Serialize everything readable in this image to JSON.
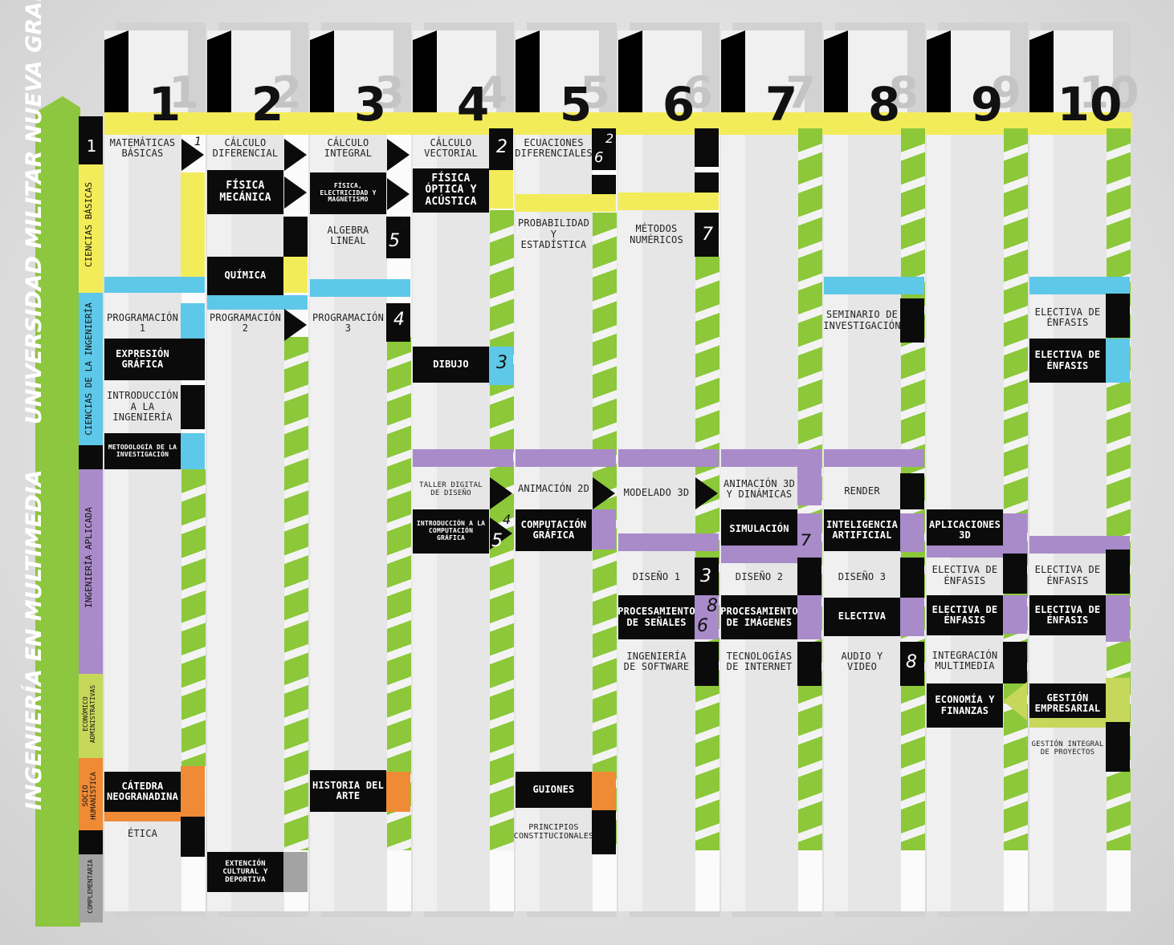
{
  "title_main": "INGENIERÍA EN MULTIMEDIA",
  "title_university": "UNIVERSIDAD MILITAR NUEVA GRANADA",
  "legend_number": "1",
  "categories": [
    {
      "label": "CIENCIAS BÁSICAS",
      "color": "#f3ec5a"
    },
    {
      "label": "CIENCIAS DE LA INGENIERÍA",
      "color": "#5ec8e8"
    },
    {
      "label": "INGENIERÍA APLICADA",
      "color": "#a98bc9"
    },
    {
      "label": "ECONÓMICO ADMINISTRATIVAS",
      "color": "#c6d85a"
    },
    {
      "label": "SOCIO HUMANÍSTICA",
      "color": "#ef8a35"
    },
    {
      "label": "COMPLEMENTARIA",
      "color": "#a3a3a3"
    }
  ],
  "colors": {
    "accent_green": "#8dc63f",
    "dark": "#0b0b0b",
    "yellow": "#f3ec5a",
    "blue": "#5ec8e8",
    "purple": "#a98bc9",
    "orange": "#ef8a35",
    "olive": "#c6d85a"
  },
  "semesters": [
    "1",
    "2",
    "3",
    "4",
    "5",
    "6",
    "7",
    "8",
    "9",
    "10"
  ],
  "courses": {
    "s1": {
      "matematicas_basicas": "MATEMÁTICAS BÁSICAS",
      "programacion_1": "PROGRAMACIÓN 1",
      "expresion_grafica": "EXPRESIÓN GRÁFICA",
      "introduccion_ingenieria": "INTRODUCCIÓN A LA INGENIERÍA",
      "metodologia": "METODOLOGÍA DE LA INVESTIGACIÓN",
      "catedra": "CÁTEDRA NEOGRANADINA",
      "etica": "ÉTICA"
    },
    "s2": {
      "calculo_diferencial": "CÁLCULO DIFERENCIAL",
      "fisica_mecanica": "FÍSICA MECÁNICA",
      "quimica": "QUÍMICA",
      "programacion_2": "PROGRAMACIÓN 2",
      "extencion": "EXTENCIÓN CULTURAL Y DEPORTIVA"
    },
    "s3": {
      "calculo_integral": "CÁLCULO INTEGRAL",
      "fisica_electricidad": "FÍSICA, ELECTRICIDAD Y MAGNETISMO",
      "algebra_lineal": "ALGEBRA LINEAL",
      "programacion_3": "PROGRAMACIÓN 3",
      "historia_arte": "HISTORIA DEL ARTE"
    },
    "s4": {
      "calculo_vectorial": "CÁLCULO VECTORIAL",
      "fisica_optica": "FÍSICA ÓPTICA Y ACÚSTICA",
      "dibujo": "DIBUJO",
      "taller_digital": "TALLER DIGITAL DE DISEÑO",
      "intro_computacion": "INTRODUCCIÓN A LA COMPUTACIÓN GRÁFICA"
    },
    "s5": {
      "ecuaciones": "ECUACIONES DIFERENCIALES",
      "probabilidad": "PROBABILIDAD Y ESTADÍSTICA",
      "animacion_2d": "ANIMACIÓN 2D",
      "computacion_grafica": "COMPUTACIÓN GRÁFICA",
      "guiones": "GUIONES",
      "principios": "PRINCIPIOS CONSTITUCIONALES"
    },
    "s6": {
      "metodos_numericos": "MÉTODOS NUMÉRICOS",
      "modelado_3d": "MODELADO 3D",
      "diseno_1": "DISEÑO 1",
      "procesamiento_senales": "PROCESAMIENTO DE SEÑALES",
      "ingenieria_software": "INGENIERÍA DE SOFTWARE"
    },
    "s7": {
      "animacion_3d": "ANIMACIÓN 3D Y DINÁMICAS",
      "simulacion": "SIMULACIÓN",
      "diseno_2": "DISEÑO 2",
      "procesamiento_imagenes": "PROCESAMIENTO DE IMÁGENES",
      "tecnologias_internet": "TECNOLOGÍAS DE INTERNET"
    },
    "s8": {
      "seminario": "SEMINARIO DE INVESTIGACIÓN",
      "render": "RENDER",
      "inteligencia_artificial": "INTELIGENCIA ARTIFICIAL",
      "diseno_3": "DISEÑO 3",
      "electiva": "ELECTIVA",
      "audio_video": "AUDIO Y VIDEO"
    },
    "s9": {
      "aplicaciones_3d": "APLICACIONES 3D",
      "electiva_enfasis_1": "ELECTIVA DE ÉNFASIS",
      "electiva_enfasis_2": "ELECTIVA DE ÉNFASIS",
      "integracion_multimedia": "INTEGRACIÓN MULTIMEDIA",
      "economia_finanzas": "ECONOMÍA Y FINANZAS"
    },
    "s10": {
      "electiva_enfasis_1": "ELECTIVA DE ÉNFASIS",
      "electiva_enfasis_2": "ELECTIVA DE ÉNFASIS",
      "electiva_enfasis_3": "ELECTIVA DE ÉNFASIS",
      "electiva_enfasis_4": "ELECTIVA DE ÉNFASIS",
      "gestion_empresarial": "GESTIÓN EMPRESARIAL",
      "gestion_integral": "GESTIÓN INTEGRAL DE PROYECTOS"
    }
  },
  "prereq_numbers": {
    "n1": "1",
    "n2": "2",
    "n3": "3",
    "n4": "4",
    "n5": "5",
    "n6": "6",
    "n7": "7",
    "n8": "8"
  }
}
